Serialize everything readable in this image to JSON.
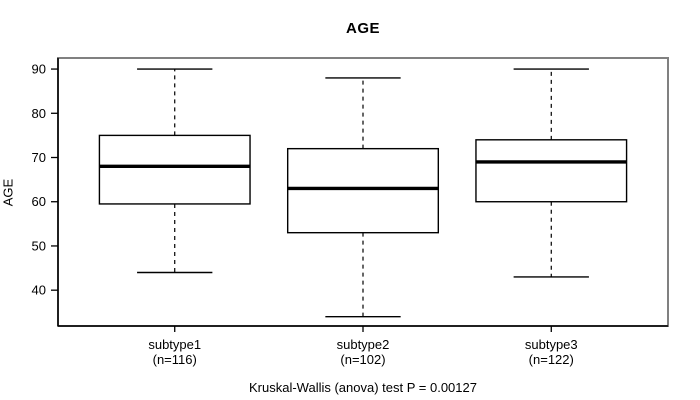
{
  "title": "AGE",
  "caption": "Kruskal-Wallis (anova) test P = 0.00127",
  "chart_data": {
    "type": "boxplot",
    "title": "AGE",
    "xlabel": "",
    "ylabel": "AGE",
    "yticks": [
      40,
      50,
      60,
      70,
      80,
      90
    ],
    "ylim": [
      31.9,
      92.5
    ],
    "grid": false,
    "legend": "none",
    "caption": "Kruskal-Wallis (anova) test P = 0.00127",
    "categories": [
      "subtype1",
      "subtype2",
      "subtype3"
    ],
    "groups": [
      {
        "label": "subtype1",
        "n_label": "(n=116)",
        "n": 116,
        "whisker_low": 44,
        "q1": 59.5,
        "median": 68,
        "q3": 75,
        "whisker_high": 90
      },
      {
        "label": "subtype2",
        "n_label": "(n=102)",
        "n": 102,
        "whisker_low": 34,
        "q1": 53,
        "median": 63,
        "q3": 72,
        "whisker_high": 88
      },
      {
        "label": "subtype3",
        "n_label": "(n=122)",
        "n": 122,
        "whisker_low": 43,
        "q1": 60,
        "median": 69,
        "q3": 74,
        "whisker_high": 90
      }
    ],
    "colors": {
      "box_fill": "#ffffff",
      "stroke": "#000000",
      "frame_border": "#808080",
      "background": "#ffffff"
    }
  }
}
